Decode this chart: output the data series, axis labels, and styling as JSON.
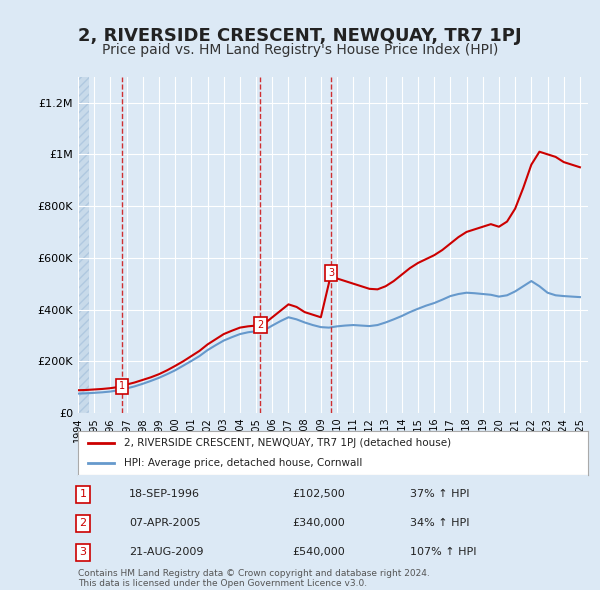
{
  "title": "2, RIVERSIDE CRESCENT, NEWQUAY, TR7 1PJ",
  "subtitle": "Price paid vs. HM Land Registry's House Price Index (HPI)",
  "title_fontsize": 13,
  "subtitle_fontsize": 10,
  "xlabel": "",
  "ylabel": "",
  "xlim": [
    1994.0,
    2025.5
  ],
  "ylim": [
    0,
    1300000
  ],
  "yticks": [
    0,
    200000,
    400000,
    600000,
    800000,
    1000000,
    1200000
  ],
  "ytick_labels": [
    "£0",
    "£200K",
    "£400K",
    "£600K",
    "£800K",
    "£1M",
    "£1.2M"
  ],
  "xticks": [
    1994,
    1995,
    1996,
    1997,
    1998,
    1999,
    2000,
    2001,
    2002,
    2003,
    2004,
    2005,
    2006,
    2007,
    2008,
    2009,
    2010,
    2011,
    2012,
    2013,
    2014,
    2015,
    2016,
    2017,
    2018,
    2019,
    2020,
    2021,
    2022,
    2023,
    2024,
    2025
  ],
  "background_color": "#dce9f5",
  "plot_bg_color": "#dce9f5",
  "hatch_color": "#b0c8e0",
  "red_line_color": "#cc0000",
  "blue_line_color": "#6699cc",
  "sale_marker_color": "#cc0000",
  "sale_label_bg": "#ffffff",
  "sale_label_border": "#cc0000",
  "dashed_line_color": "#cc0000",
  "legend_label_red": "2, RIVERSIDE CRESCENT, NEWQUAY, TR7 1PJ (detached house)",
  "legend_label_blue": "HPI: Average price, detached house, Cornwall",
  "sales": [
    {
      "num": 1,
      "year": 1996.72,
      "price": 102500,
      "date": "18-SEP-1996",
      "pct": "37%",
      "dir": "↑"
    },
    {
      "num": 2,
      "year": 2005.27,
      "price": 340000,
      "date": "07-APR-2005",
      "pct": "34%",
      "dir": "↑"
    },
    {
      "num": 3,
      "year": 2009.64,
      "price": 540000,
      "date": "21-AUG-2009",
      "pct": "107%",
      "dir": "↑"
    }
  ],
  "footer_text": "Contains HM Land Registry data © Crown copyright and database right 2024.\nThis data is licensed under the Open Government Licence v3.0.",
  "red_line_x": [
    1994.0,
    1994.5,
    1995.0,
    1995.5,
    1996.0,
    1996.72,
    1997.0,
    1997.5,
    1998.0,
    1998.5,
    1999.0,
    1999.5,
    2000.0,
    2000.5,
    2001.0,
    2001.5,
    2002.0,
    2002.5,
    2003.0,
    2003.5,
    2004.0,
    2004.5,
    2005.0,
    2005.27,
    2005.5,
    2006.0,
    2006.5,
    2007.0,
    2007.5,
    2008.0,
    2008.5,
    2009.0,
    2009.64,
    2010.0,
    2010.5,
    2011.0,
    2011.5,
    2012.0,
    2012.5,
    2013.0,
    2013.5,
    2014.0,
    2014.5,
    2015.0,
    2015.5,
    2016.0,
    2016.5,
    2017.0,
    2017.5,
    2018.0,
    2018.5,
    2019.0,
    2019.5,
    2020.0,
    2020.5,
    2021.0,
    2021.5,
    2022.0,
    2022.5,
    2023.0,
    2023.5,
    2024.0,
    2024.5,
    2025.0
  ],
  "red_line_y": [
    88000,
    89000,
    91000,
    93000,
    96000,
    102500,
    110000,
    118000,
    128000,
    138000,
    150000,
    165000,
    182000,
    200000,
    220000,
    240000,
    265000,
    285000,
    305000,
    318000,
    330000,
    335000,
    338000,
    340000,
    345000,
    370000,
    395000,
    420000,
    410000,
    390000,
    380000,
    370000,
    540000,
    520000,
    510000,
    500000,
    490000,
    480000,
    478000,
    490000,
    510000,
    535000,
    560000,
    580000,
    595000,
    610000,
    630000,
    655000,
    680000,
    700000,
    710000,
    720000,
    730000,
    720000,
    740000,
    790000,
    870000,
    960000,
    1010000,
    1000000,
    990000,
    970000,
    960000,
    950000
  ],
  "blue_line_x": [
    1994.0,
    1994.5,
    1995.0,
    1995.5,
    1996.0,
    1996.5,
    1997.0,
    1997.5,
    1998.0,
    1998.5,
    1999.0,
    1999.5,
    2000.0,
    2000.5,
    2001.0,
    2001.5,
    2002.0,
    2002.5,
    2003.0,
    2003.5,
    2004.0,
    2004.5,
    2005.0,
    2005.5,
    2006.0,
    2006.5,
    2007.0,
    2007.5,
    2008.0,
    2008.5,
    2009.0,
    2009.5,
    2010.0,
    2010.5,
    2011.0,
    2011.5,
    2012.0,
    2012.5,
    2013.0,
    2013.5,
    2014.0,
    2014.5,
    2015.0,
    2015.5,
    2016.0,
    2016.5,
    2017.0,
    2017.5,
    2018.0,
    2018.5,
    2019.0,
    2019.5,
    2020.0,
    2020.5,
    2021.0,
    2021.5,
    2022.0,
    2022.5,
    2023.0,
    2023.5,
    2024.0,
    2024.5,
    2025.0
  ],
  "blue_line_y": [
    75000,
    76000,
    78000,
    80000,
    83000,
    88000,
    95000,
    103000,
    113000,
    124000,
    136000,
    150000,
    165000,
    183000,
    201000,
    220000,
    243000,
    262000,
    280000,
    293000,
    305000,
    312000,
    316000,
    320000,
    338000,
    355000,
    370000,
    362000,
    350000,
    340000,
    332000,
    330000,
    335000,
    338000,
    340000,
    338000,
    336000,
    340000,
    350000,
    362000,
    375000,
    390000,
    403000,
    415000,
    425000,
    438000,
    452000,
    460000,
    465000,
    463000,
    460000,
    457000,
    450000,
    455000,
    470000,
    490000,
    510000,
    490000,
    465000,
    455000,
    452000,
    450000,
    448000
  ]
}
